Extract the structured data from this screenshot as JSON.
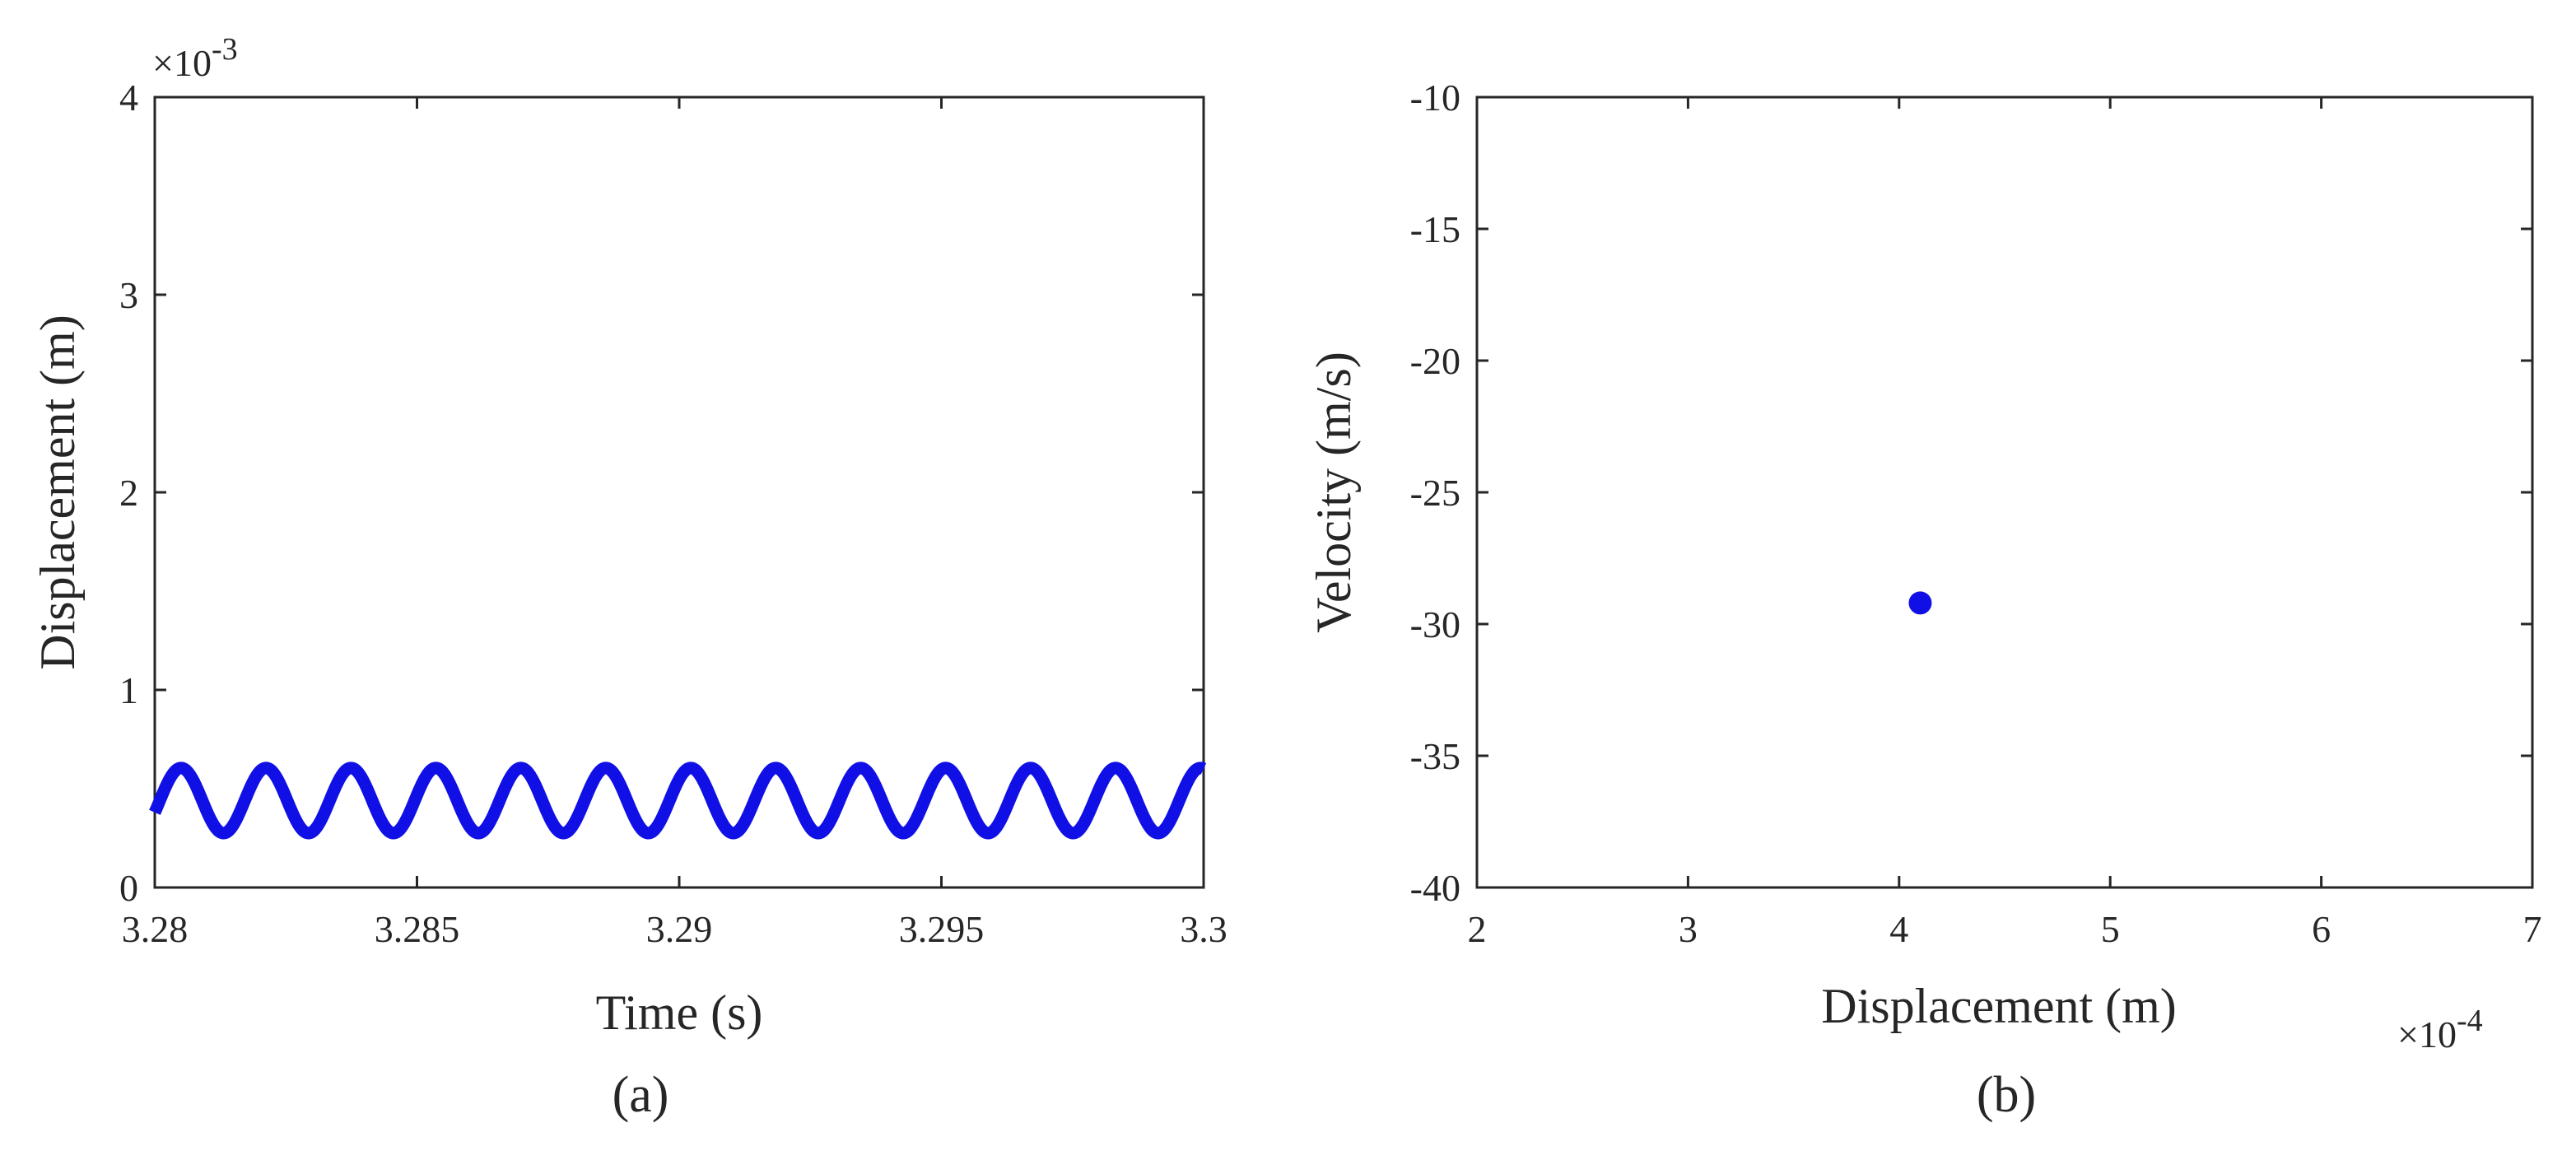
{
  "chart_data": [
    {
      "type": "line",
      "panel_label": "(a)",
      "xlabel": "Time (s)",
      "ylabel": "Displacement (m)",
      "xlim": [
        3.28,
        3.3
      ],
      "ylim": [
        0,
        4
      ],
      "y_multiplier": "×10-3",
      "y_multiplier_base": "×10",
      "y_multiplier_exp": "-3",
      "xticks": [
        3.28,
        3.285,
        3.29,
        3.295,
        3.3
      ],
      "xtick_labels": [
        "3.28",
        "3.285",
        "3.29",
        "3.295",
        "3.3"
      ],
      "yticks": [
        0,
        1,
        2,
        3,
        4
      ],
      "ytick_labels": [
        "0",
        "1",
        "2",
        "3",
        "4"
      ],
      "series": [
        {
          "color": "#1010e6",
          "waveform": "sine",
          "mean": 0.44,
          "amplitude": 0.165,
          "period": 0.00162,
          "phase_at_xmin": 0.38
        }
      ]
    },
    {
      "type": "scatter",
      "panel_label": "(b)",
      "xlabel": "Displacement (m)",
      "ylabel": "Velocity (m/s)",
      "xlim": [
        2,
        7
      ],
      "ylim": [
        -40,
        -10
      ],
      "x_multiplier": "×10-4",
      "x_multiplier_base": "×10",
      "x_multiplier_exp": "-4",
      "xticks": [
        2,
        3,
        4,
        5,
        6,
        7
      ],
      "xtick_labels": [
        "2",
        "3",
        "4",
        "5",
        "6",
        "7"
      ],
      "yticks": [
        -40,
        -35,
        -30,
        -25,
        -20,
        -15,
        -10
      ],
      "ytick_labels": [
        "-40",
        "-35",
        "-30",
        "-25",
        "-20",
        "-15",
        "-10"
      ],
      "series": [
        {
          "color": "#1010e6",
          "x": [
            4.1
          ],
          "y": [
            -29.2
          ]
        }
      ]
    }
  ]
}
